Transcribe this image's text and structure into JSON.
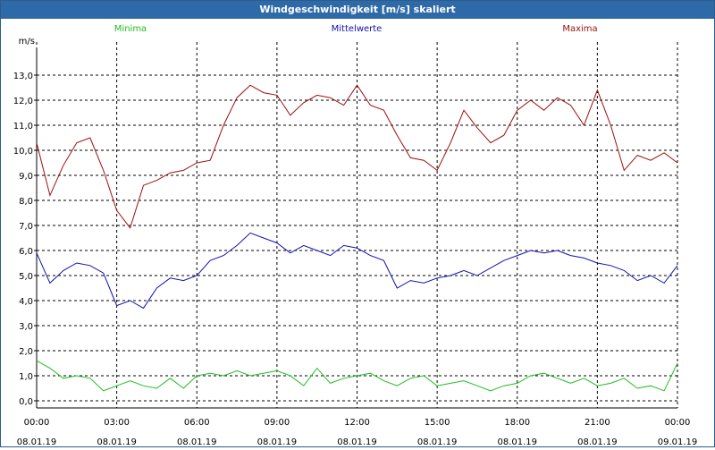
{
  "window": {
    "title": "Windgeschwindigkeit [m/s] skaliert"
  },
  "colors": {
    "minima": "#1fbf1f",
    "mittelwerte": "#1010b0",
    "maxima": "#9b0f0f",
    "grid": "#000000",
    "titlebar": "#2e6aa8"
  },
  "chart_data": {
    "type": "line",
    "ylabel": "m/s",
    "ylim": [
      0,
      14
    ],
    "y_ticks": [
      "0,0",
      "1,0",
      "2,0",
      "3,0",
      "4,0",
      "5,0",
      "6,0",
      "7,0",
      "8,0",
      "9,0",
      "10,0",
      "11,0",
      "12,0",
      "13,0"
    ],
    "x_ticks": [
      {
        "time": "00:00",
        "date": "08.01.19"
      },
      {
        "time": "03:00",
        "date": "08.01.19"
      },
      {
        "time": "06:00",
        "date": "08.01.19"
      },
      {
        "time": "09:00",
        "date": "08.01.19"
      },
      {
        "time": "12:00",
        "date": "08.01.19"
      },
      {
        "time": "15:00",
        "date": "08.01.19"
      },
      {
        "time": "18:00",
        "date": "08.01.19"
      },
      {
        "time": "21:00",
        "date": "08.01.19"
      },
      {
        "time": "00:00",
        "date": "09.01.19"
      }
    ],
    "x_hours": [
      0,
      0.5,
      1,
      1.5,
      2,
      2.5,
      3,
      3.5,
      4,
      4.5,
      5,
      5.5,
      6,
      6.5,
      7,
      7.5,
      8,
      8.5,
      9,
      9.5,
      10,
      10.5,
      11,
      11.5,
      12,
      12.5,
      13,
      13.5,
      14,
      14.5,
      15,
      15.5,
      16,
      16.5,
      17,
      17.5,
      18,
      18.5,
      19,
      19.5,
      20,
      20.5,
      21,
      21.5,
      22,
      22.5,
      23,
      23.5,
      24
    ],
    "series": [
      {
        "name": "Minima",
        "values": [
          1.6,
          1.3,
          0.9,
          1.0,
          0.9,
          0.4,
          0.6,
          0.8,
          0.6,
          0.5,
          0.9,
          0.5,
          1.0,
          1.1,
          1.0,
          1.2,
          1.0,
          1.1,
          1.2,
          1.0,
          0.6,
          1.3,
          0.7,
          0.9,
          1.0,
          1.1,
          0.8,
          0.6,
          0.9,
          1.0,
          0.6,
          0.7,
          0.8,
          0.6,
          0.4,
          0.6,
          0.7,
          1.0,
          1.1,
          0.9,
          0.7,
          0.9,
          0.6,
          0.7,
          0.9,
          0.5,
          0.6,
          0.4,
          1.5
        ]
      },
      {
        "name": "Mittelwerte",
        "values": [
          5.9,
          4.7,
          5.2,
          5.5,
          5.4,
          5.1,
          3.8,
          4.0,
          3.7,
          4.5,
          4.9,
          4.8,
          5.0,
          5.6,
          5.8,
          6.2,
          6.7,
          6.5,
          6.3,
          5.9,
          6.2,
          6.0,
          5.8,
          6.2,
          6.1,
          5.8,
          5.6,
          4.5,
          4.8,
          4.7,
          4.9,
          5.0,
          5.2,
          5.0,
          5.3,
          5.6,
          5.8,
          6.0,
          5.9,
          6.0,
          5.8,
          5.7,
          5.5,
          5.4,
          5.2,
          4.8,
          5.0,
          4.7,
          5.4
        ]
      },
      {
        "name": "Maxima",
        "values": [
          10.3,
          8.2,
          9.4,
          10.3,
          10.5,
          9.2,
          7.6,
          6.9,
          8.6,
          8.8,
          9.1,
          9.2,
          9.5,
          9.6,
          11.0,
          12.1,
          12.6,
          12.3,
          12.2,
          11.4,
          11.9,
          12.2,
          12.1,
          11.8,
          12.6,
          11.8,
          11.6,
          10.6,
          9.7,
          9.6,
          9.2,
          10.3,
          11.6,
          10.9,
          10.3,
          10.6,
          11.6,
          12.0,
          11.6,
          12.1,
          11.8,
          11.0,
          12.4,
          11.0,
          9.2,
          9.8,
          9.6,
          9.9,
          9.5
        ]
      }
    ]
  }
}
